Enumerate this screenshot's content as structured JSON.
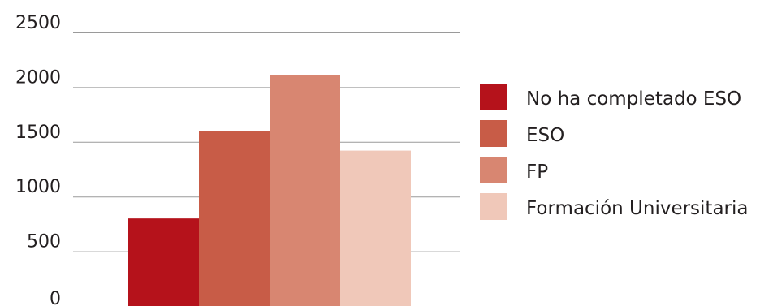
{
  "chart_data": {
    "type": "bar",
    "title": "",
    "xlabel": "",
    "ylabel": "",
    "ylim": [
      0,
      2500
    ],
    "yticks": [
      0,
      500,
      1000,
      1500,
      2000,
      2500
    ],
    "grid": true,
    "legend_position": "right",
    "series": [
      {
        "name": "No ha completado ESO",
        "value": 800,
        "color": "#b5121b"
      },
      {
        "name": "ESO",
        "value": 1600,
        "color": "#c85c47"
      },
      {
        "name": "FP",
        "value": 2110,
        "color": "#d88671"
      },
      {
        "name": "Formación Universitaria",
        "value": 1420,
        "color": "#f0c8b9"
      }
    ]
  }
}
